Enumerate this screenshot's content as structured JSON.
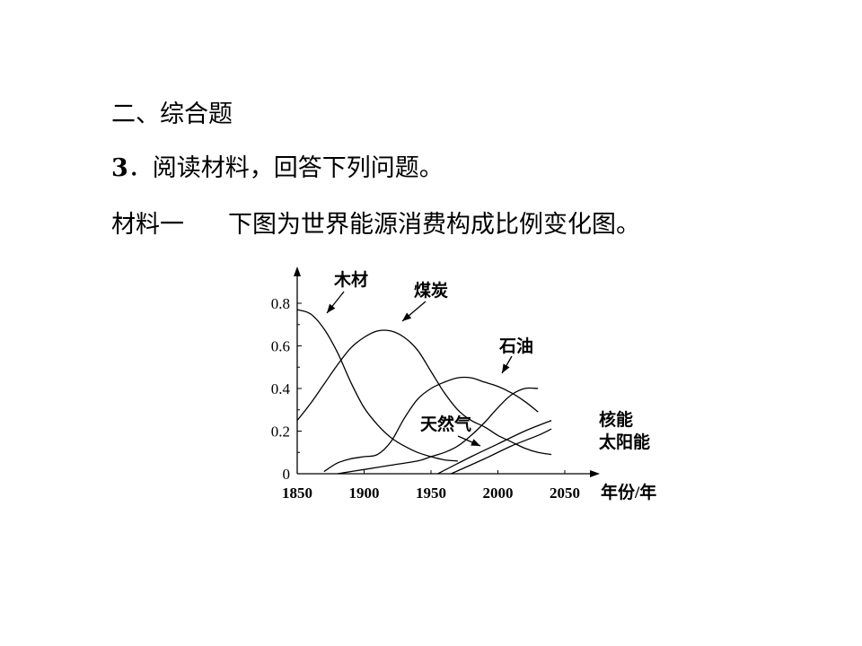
{
  "page": {
    "section_title": "二、综合题",
    "question_number": "3",
    "question_text": "阅读材料，回答下列问题。",
    "material_label": "材料一",
    "material_text": "下图为世界能源消费构成比例变化图。"
  },
  "chart_data": {
    "type": "line",
    "title": "",
    "xlabel": "年份/年",
    "ylabel": "",
    "xlim": [
      1850,
      2050
    ],
    "ylim": [
      0,
      0.8
    ],
    "x_ticks": [
      "1850",
      "1900",
      "1950",
      "2000",
      "2050"
    ],
    "y_ticks": [
      "0",
      "0.2",
      "0.4",
      "0.6",
      "0.8"
    ],
    "series": [
      {
        "name": "木材",
        "points": [
          [
            1850,
            0.77
          ],
          [
            1860,
            0.75
          ],
          [
            1870,
            0.68
          ],
          [
            1880,
            0.57
          ],
          [
            1890,
            0.43
          ],
          [
            1900,
            0.31
          ],
          [
            1910,
            0.23
          ],
          [
            1920,
            0.17
          ],
          [
            1930,
            0.13
          ],
          [
            1940,
            0.1
          ],
          [
            1950,
            0.08
          ],
          [
            1960,
            0.065
          ],
          [
            1970,
            0.06
          ]
        ]
      },
      {
        "name": "煤炭",
        "points": [
          [
            1850,
            0.25
          ],
          [
            1860,
            0.33
          ],
          [
            1870,
            0.42
          ],
          [
            1880,
            0.51
          ],
          [
            1890,
            0.59
          ],
          [
            1900,
            0.64
          ],
          [
            1910,
            0.67
          ],
          [
            1920,
            0.67
          ],
          [
            1930,
            0.64
          ],
          [
            1940,
            0.58
          ],
          [
            1950,
            0.48
          ],
          [
            1960,
            0.38
          ],
          [
            1970,
            0.3
          ],
          [
            1980,
            0.25
          ],
          [
            1990,
            0.22
          ],
          [
            2000,
            0.18
          ],
          [
            2010,
            0.15
          ],
          [
            2020,
            0.12
          ],
          [
            2030,
            0.1
          ],
          [
            2040,
            0.09
          ]
        ]
      },
      {
        "name": "石油",
        "points": [
          [
            1870,
            0.01
          ],
          [
            1880,
            0.05
          ],
          [
            1890,
            0.07
          ],
          [
            1900,
            0.08
          ],
          [
            1910,
            0.09
          ],
          [
            1920,
            0.15
          ],
          [
            1930,
            0.26
          ],
          [
            1940,
            0.35
          ],
          [
            1950,
            0.4
          ],
          [
            1960,
            0.43
          ],
          [
            1970,
            0.45
          ],
          [
            1980,
            0.45
          ],
          [
            1990,
            0.43
          ],
          [
            2000,
            0.41
          ],
          [
            2010,
            0.38
          ],
          [
            2020,
            0.34
          ],
          [
            2030,
            0.29
          ]
        ]
      },
      {
        "name": "天然气",
        "points": [
          [
            1880,
            0.0
          ],
          [
            1900,
            0.02
          ],
          [
            1920,
            0.04
          ],
          [
            1940,
            0.06
          ],
          [
            1950,
            0.08
          ],
          [
            1960,
            0.1
          ],
          [
            1970,
            0.13
          ],
          [
            1980,
            0.18
          ],
          [
            1990,
            0.24
          ],
          [
            2000,
            0.31
          ],
          [
            2010,
            0.37
          ],
          [
            2020,
            0.4
          ],
          [
            2030,
            0.4
          ]
        ]
      },
      {
        "name": "核能",
        "points": [
          [
            1955,
            0.0
          ],
          [
            1980,
            0.08
          ],
          [
            2000,
            0.14
          ],
          [
            2020,
            0.2
          ],
          [
            2040,
            0.25
          ]
        ]
      },
      {
        "name": "太阳能",
        "points": [
          [
            1965,
            0.0
          ],
          [
            1990,
            0.07
          ],
          [
            2010,
            0.13
          ],
          [
            2030,
            0.18
          ],
          [
            2040,
            0.21
          ]
        ]
      }
    ]
  }
}
